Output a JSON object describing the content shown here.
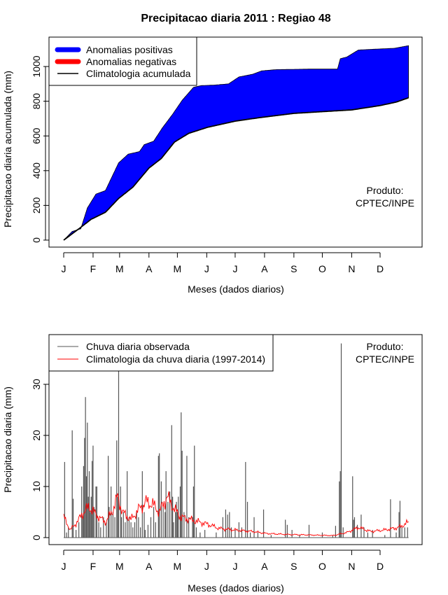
{
  "chart_data": [
    {
      "type": "area",
      "title": "Precipitacao diaria 2011 : Regiao 48",
      "xlabel": "Meses (dados diarios)",
      "ylabel": "Precipitacao diaria acumulada (mm)",
      "ylim": [
        0,
        1130
      ],
      "yticks": [
        "0",
        "200",
        "400",
        "600",
        "800",
        "1000"
      ],
      "month_labels": [
        "J",
        "F",
        "M",
        "A",
        "M",
        "J",
        "J",
        "A",
        "S",
        "O",
        "N",
        "D"
      ],
      "month_start_days": [
        1,
        32,
        60,
        91,
        121,
        152,
        182,
        213,
        244,
        274,
        305,
        335
      ],
      "legend": {
        "position": "top-left",
        "items": [
          "Anomalias positivas",
          "Anomalias negativas",
          "Climatologia acumulada"
        ]
      },
      "annotation": [
        "Produto:",
        "CPTEC/INPE"
      ],
      "colors": {
        "positive": "#0000ff",
        "negative": "#ff0000",
        "climatology": "#000000"
      },
      "observed_cumulative": [
        [
          1,
          0
        ],
        [
          10,
          50
        ],
        [
          19,
          65
        ],
        [
          26,
          185
        ],
        [
          35,
          265
        ],
        [
          45,
          285
        ],
        [
          59,
          445
        ],
        [
          69,
          495
        ],
        [
          81,
          510
        ],
        [
          86,
          550
        ],
        [
          96,
          570
        ],
        [
          105,
          645
        ],
        [
          116,
          725
        ],
        [
          126,
          805
        ],
        [
          138,
          880
        ],
        [
          146,
          890
        ],
        [
          160,
          893
        ],
        [
          175,
          900
        ],
        [
          186,
          940
        ],
        [
          200,
          955
        ],
        [
          210,
          975
        ],
        [
          225,
          982
        ],
        [
          260,
          985
        ],
        [
          290,
          985
        ],
        [
          293,
          1045
        ],
        [
          300,
          1055
        ],
        [
          312,
          1095
        ],
        [
          330,
          1100
        ],
        [
          350,
          1105
        ],
        [
          365,
          1120
        ]
      ],
      "climatology_cumulative": [
        [
          1,
          0
        ],
        [
          17,
          65
        ],
        [
          30,
          120
        ],
        [
          45,
          160
        ],
        [
          59,
          240
        ],
        [
          74,
          305
        ],
        [
          91,
          415
        ],
        [
          104,
          470
        ],
        [
          118,
          565
        ],
        [
          133,
          615
        ],
        [
          153,
          650
        ],
        [
          182,
          685
        ],
        [
          207,
          705
        ],
        [
          244,
          730
        ],
        [
          274,
          740
        ],
        [
          305,
          750
        ],
        [
          335,
          775
        ],
        [
          352,
          795
        ],
        [
          365,
          820
        ]
      ]
    },
    {
      "type": "bar",
      "xlabel": "Meses (dados diarios)",
      "ylabel": "Precipitacao diaria (mm)",
      "ylim": [
        0,
        39
      ],
      "yticks": [
        "0",
        "10",
        "20",
        "30"
      ],
      "month_labels": [
        "J",
        "F",
        "M",
        "A",
        "M",
        "J",
        "J",
        "A",
        "S",
        "O",
        "N",
        "D"
      ],
      "month_start_days": [
        1,
        32,
        60,
        91,
        121,
        152,
        182,
        213,
        244,
        274,
        305,
        335
      ],
      "legend": {
        "position": "top-left",
        "items": [
          "Chuva diaria observada",
          "Climatologia da chuva diaria (1997-2014)"
        ]
      },
      "annotation": [
        "Produto:",
        "CPTEC/INPE"
      ],
      "colors": {
        "observed": "#555555",
        "climatology": "#ff0000"
      },
      "observed_daily": [
        [
          2,
          14.8
        ],
        [
          4,
          1
        ],
        [
          6,
          2
        ],
        [
          10,
          21
        ],
        [
          11,
          7.6
        ],
        [
          14,
          1.5
        ],
        [
          17,
          3
        ],
        [
          20,
          10
        ],
        [
          21,
          4
        ],
        [
          22,
          14
        ],
        [
          23,
          19.5
        ],
        [
          24,
          27.5
        ],
        [
          25,
          12
        ],
        [
          26,
          22.5
        ],
        [
          27,
          8
        ],
        [
          28,
          13
        ],
        [
          29,
          5
        ],
        [
          30,
          8
        ],
        [
          31,
          15
        ],
        [
          32,
          18
        ],
        [
          33,
          6
        ],
        [
          35,
          10
        ],
        [
          36,
          10
        ],
        [
          38,
          3
        ],
        [
          40,
          2
        ],
        [
          43,
          4
        ],
        [
          46,
          3
        ],
        [
          48,
          16
        ],
        [
          49,
          6
        ],
        [
          51,
          10
        ],
        [
          53,
          5
        ],
        [
          55,
          4
        ],
        [
          57,
          19
        ],
        [
          58,
          8
        ],
        [
          59,
          38
        ],
        [
          61,
          10
        ],
        [
          62,
          4
        ],
        [
          64,
          5
        ],
        [
          66,
          3
        ],
        [
          68,
          13
        ],
        [
          70,
          4
        ],
        [
          72,
          3
        ],
        [
          74,
          2
        ],
        [
          76,
          3
        ],
        [
          78,
          5
        ],
        [
          80,
          4
        ],
        [
          82,
          2
        ],
        [
          84,
          13
        ],
        [
          86,
          5
        ],
        [
          87,
          1.5
        ],
        [
          90,
          2.5
        ],
        [
          93,
          4
        ],
        [
          96,
          6
        ],
        [
          98,
          3
        ],
        [
          101,
          16
        ],
        [
          102,
          16.5
        ],
        [
          104,
          11
        ],
        [
          106,
          6
        ],
        [
          108,
          5
        ],
        [
          109,
          13
        ],
        [
          111,
          7
        ],
        [
          113,
          9
        ],
        [
          115,
          22
        ],
        [
          116,
          8
        ],
        [
          117,
          3
        ],
        [
          119,
          5
        ],
        [
          120,
          7
        ],
        [
          121,
          5
        ],
        [
          122,
          8
        ],
        [
          124,
          10
        ],
        [
          125,
          24.5
        ],
        [
          126,
          17
        ],
        [
          128,
          5
        ],
        [
          131,
          16
        ],
        [
          133,
          4
        ],
        [
          137,
          4
        ],
        [
          138,
          10
        ],
        [
          139,
          18
        ],
        [
          141,
          2
        ],
        [
          145,
          1
        ],
        [
          150,
          1.5
        ],
        [
          162,
          1
        ],
        [
          169,
          4
        ],
        [
          172,
          5.5
        ],
        [
          174,
          4.5
        ],
        [
          176,
          5
        ],
        [
          178,
          2
        ],
        [
          182,
          1.5
        ],
        [
          186,
          3
        ],
        [
          189,
          2
        ],
        [
          193,
          14.8
        ],
        [
          195,
          7
        ],
        [
          198,
          1
        ],
        [
          202,
          4
        ],
        [
          206,
          1
        ],
        [
          212,
          5.5
        ],
        [
          220,
          0.5
        ],
        [
          235,
          3.5
        ],
        [
          237,
          2.5
        ],
        [
          242,
          1.5
        ],
        [
          250,
          0.5
        ],
        [
          260,
          2.5
        ],
        [
          274,
          1
        ],
        [
          285,
          0.5
        ],
        [
          288,
          2.3
        ],
        [
          292,
          11
        ],
        [
          293,
          13
        ],
        [
          294,
          38
        ],
        [
          296,
          2
        ],
        [
          306,
          12
        ],
        [
          307,
          3.5
        ],
        [
          308,
          4
        ],
        [
          311,
          2.5
        ],
        [
          315,
          4.5
        ],
        [
          318,
          2
        ],
        [
          322,
          1
        ],
        [
          327,
          1.5
        ],
        [
          340,
          0.5
        ],
        [
          346,
          7.5
        ],
        [
          352,
          1
        ],
        [
          355,
          5
        ],
        [
          356,
          7.2
        ],
        [
          358,
          2
        ],
        [
          361,
          2
        ],
        [
          364,
          2
        ]
      ],
      "climatology_daily": [
        [
          1,
          4
        ],
        [
          8,
          1.5
        ],
        [
          15,
          3
        ],
        [
          22,
          5
        ],
        [
          28,
          6
        ],
        [
          35,
          4.5
        ],
        [
          45,
          3
        ],
        [
          52,
          5
        ],
        [
          58,
          8
        ],
        [
          63,
          5
        ],
        [
          72,
          3.5
        ],
        [
          80,
          5.5
        ],
        [
          88,
          7
        ],
        [
          95,
          6.5
        ],
        [
          102,
          5
        ],
        [
          110,
          8
        ],
        [
          118,
          5.5
        ],
        [
          125,
          4
        ],
        [
          135,
          3.5
        ],
        [
          145,
          3
        ],
        [
          155,
          2.5
        ],
        [
          165,
          1.8
        ],
        [
          180,
          1.5
        ],
        [
          200,
          1.2
        ],
        [
          215,
          0.8
        ],
        [
          240,
          0.6
        ],
        [
          265,
          0.5
        ],
        [
          285,
          0.4
        ],
        [
          300,
          1
        ],
        [
          312,
          2
        ],
        [
          325,
          1.2
        ],
        [
          340,
          1.5
        ],
        [
          355,
          2
        ],
        [
          365,
          3
        ]
      ]
    }
  ]
}
